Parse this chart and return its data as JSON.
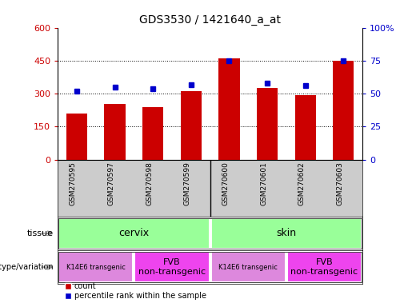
{
  "title": "GDS3530 / 1421640_a_at",
  "samples": [
    "GSM270595",
    "GSM270597",
    "GSM270598",
    "GSM270599",
    "GSM270600",
    "GSM270601",
    "GSM270602",
    "GSM270603"
  ],
  "counts": [
    210,
    255,
    240,
    310,
    460,
    325,
    293,
    450
  ],
  "percentile_ranks": [
    52,
    55,
    54,
    57,
    75,
    58,
    56,
    75
  ],
  "left_ylim": [
    0,
    600
  ],
  "right_ylim": [
    0,
    100
  ],
  "left_yticks": [
    0,
    150,
    300,
    450,
    600
  ],
  "right_yticks": [
    0,
    25,
    50,
    75,
    100
  ],
  "right_yticklabels": [
    "0",
    "25",
    "50",
    "75",
    "100%"
  ],
  "bar_color": "#cc0000",
  "dot_color": "#0000cc",
  "bg_color": "#ffffff",
  "tissue_color": "#99ff99",
  "xlabel_bg": "#cccccc",
  "genotype_color_k14": "#dd88dd",
  "genotype_color_fvb": "#ee44ee",
  "grid_yticks": [
    150,
    300,
    450
  ]
}
